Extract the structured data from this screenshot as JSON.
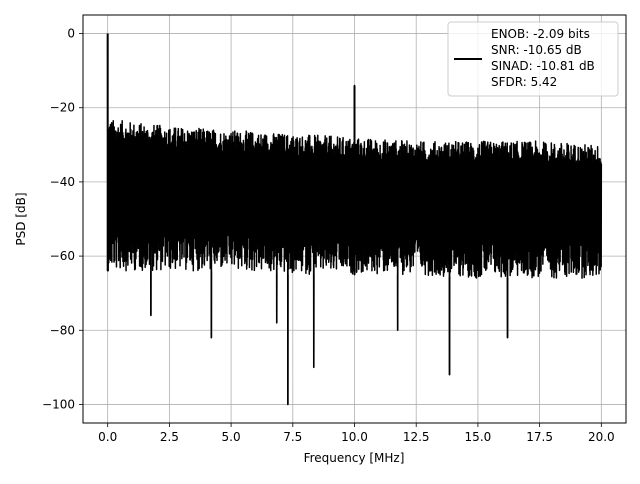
{
  "chart_data": {
    "type": "line",
    "title": "",
    "xlabel": "Frequency [MHz]",
    "ylabel": "PSD [dB]",
    "xlim": [
      -1.0,
      21.0
    ],
    "ylim": [
      -105,
      5
    ],
    "grid": true,
    "legend_position": "top-right",
    "x_ticks": [
      0.0,
      2.5,
      5.0,
      7.5,
      10.0,
      12.5,
      15.0,
      17.5,
      20.0
    ],
    "x_tick_labels": [
      "0.0",
      "2.5",
      "5.0",
      "7.5",
      "10.0",
      "12.5",
      "15.0",
      "17.5",
      "20.0"
    ],
    "y_ticks": [
      0,
      -20,
      -40,
      -60,
      -80,
      -100
    ],
    "y_tick_labels": [
      "0",
      "−20",
      "−40",
      "−60",
      "−80",
      "−100"
    ],
    "series": [
      {
        "name": "ENOB: -2.09 bits\nSNR: -10.65 dB\nSINAD: -10.81 dB\nSFDR: 5.42",
        "color": "#000000",
        "noise_floor": {
          "x": [
            0.0,
            2.5,
            5.0,
            7.5,
            10.0,
            12.5,
            15.0,
            17.5,
            20.0
          ],
          "upper": [
            -27,
            -29,
            -30,
            -31,
            -32,
            -33,
            -33,
            -33,
            -34
          ],
          "lower": [
            -64,
            -64,
            -64,
            -65,
            -65,
            -65,
            -66,
            -66,
            -66
          ]
        },
        "peaks": [
          {
            "x": 0.0,
            "y": 0
          },
          {
            "x": 10.0,
            "y": -14
          }
        ],
        "dips": [
          {
            "x": 1.75,
            "y": -76
          },
          {
            "x": 4.2,
            "y": -82
          },
          {
            "x": 6.85,
            "y": -78
          },
          {
            "x": 7.3,
            "y": -100
          },
          {
            "x": 8.35,
            "y": -90
          },
          {
            "x": 11.75,
            "y": -80
          },
          {
            "x": 13.85,
            "y": -92
          },
          {
            "x": 16.2,
            "y": -82
          }
        ]
      }
    ],
    "legend_lines": [
      "ENOB: -2.09 bits",
      "SNR: -10.65 dB",
      "SINAD: -10.81 dB",
      "SFDR: 5.42"
    ]
  }
}
